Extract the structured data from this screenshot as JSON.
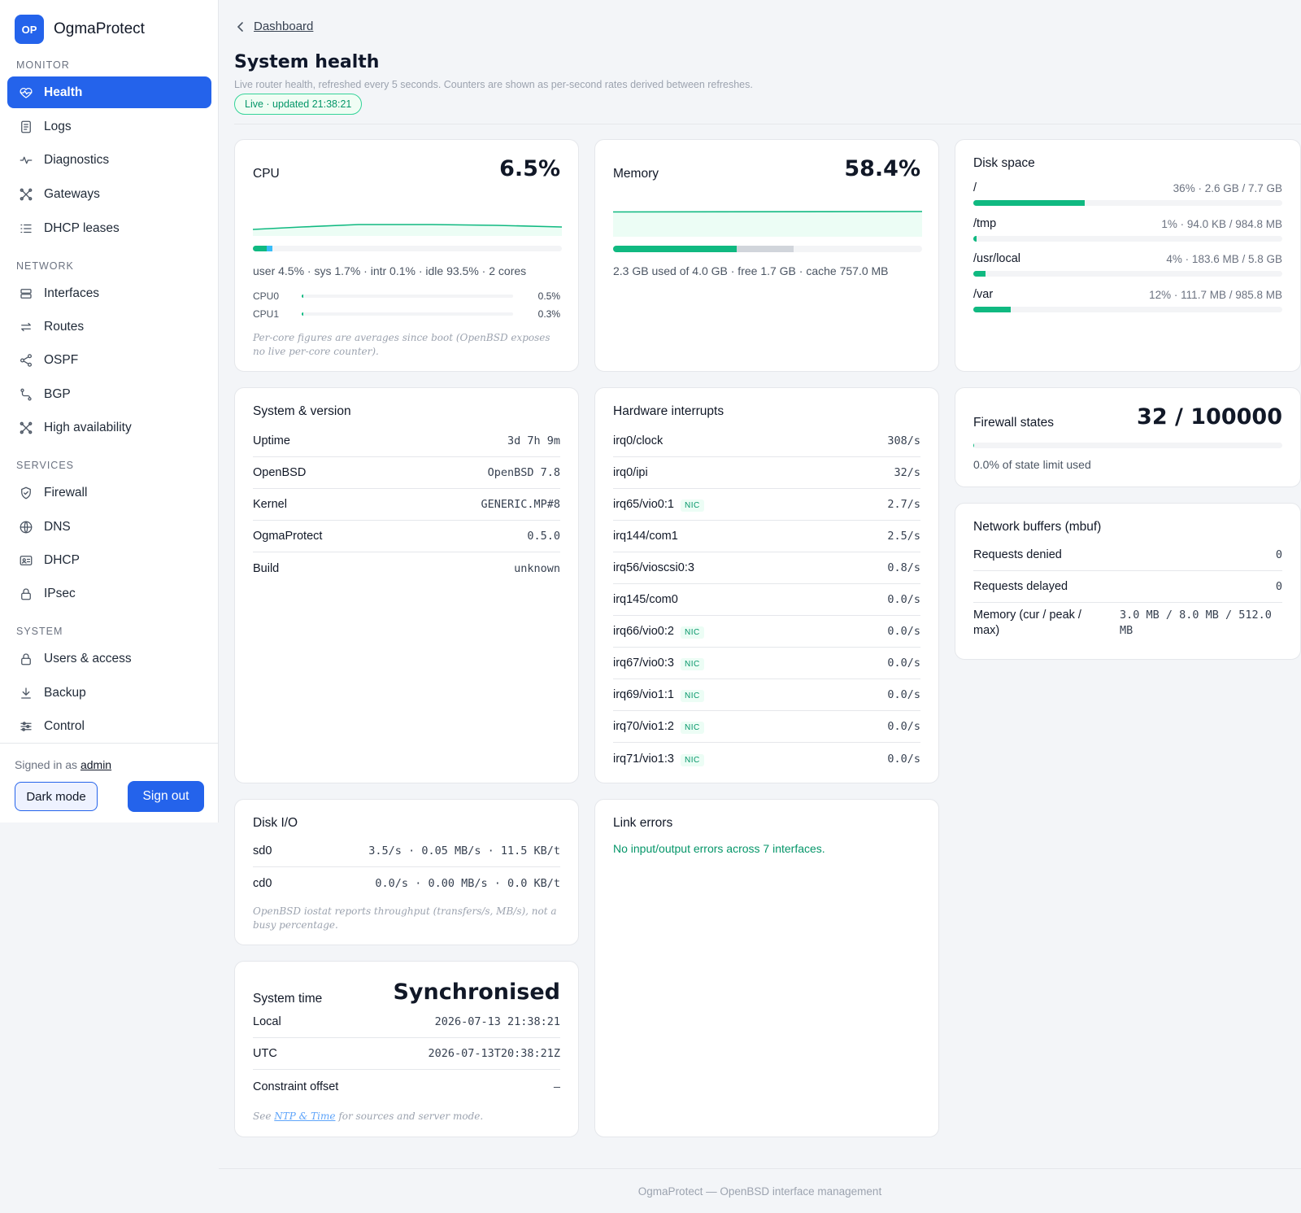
{
  "brand": {
    "logo": "OP",
    "name": "OgmaProtect"
  },
  "sidebar": {
    "sections": [
      "MONITOR",
      "NETWORK",
      "SERVICES",
      "SYSTEM"
    ],
    "items": [
      {
        "label": "Health",
        "icon": "heart-pulse-icon"
      },
      {
        "label": "Logs",
        "icon": "document-icon"
      },
      {
        "label": "Diagnostics",
        "icon": "activity-icon"
      },
      {
        "label": "Gateways",
        "icon": "network-cross-icon"
      },
      {
        "label": "DHCP leases",
        "icon": "list-icon"
      },
      {
        "label": "Interfaces",
        "icon": "server-icon"
      },
      {
        "label": "Routes",
        "icon": "arrows-exchange-icon"
      },
      {
        "label": "OSPF",
        "icon": "share-nodes-icon"
      },
      {
        "label": "BGP",
        "icon": "route-icon"
      },
      {
        "label": "High availability",
        "icon": "network-cross-icon"
      },
      {
        "label": "Firewall",
        "icon": "shield-icon"
      },
      {
        "label": "DNS",
        "icon": "globe-icon"
      },
      {
        "label": "DHCP",
        "icon": "id-card-icon"
      },
      {
        "label": "IPsec",
        "icon": "lock-icon"
      },
      {
        "label": "Users & access",
        "icon": "lock-icon"
      },
      {
        "label": "Backup",
        "icon": "download-icon"
      },
      {
        "label": "Control",
        "icon": "sliders-icon"
      }
    ],
    "signed_in_prefix": "Signed in as",
    "signed_in_user": "admin",
    "dark_mode_label": "Dark mode",
    "sign_out_label": "Sign out"
  },
  "header": {
    "breadcrumb": "Dashboard",
    "title": "System health",
    "subtitle": "Live router health, refreshed every 5 seconds. Counters are shown as per-second rates derived between refreshes.",
    "live_badge": "Live · updated 21:38:21"
  },
  "cpu": {
    "title": "CPU",
    "value": "6.5%",
    "user_pct": 4.5,
    "sys_pct": 1.7,
    "intr_pct": 0.1,
    "stats": "user 4.5% · sys 1.7% · intr 0.1% · idle 93.5% · 2 cores",
    "cores": [
      {
        "name": "CPU0",
        "value": "0.5%",
        "pct": 0.5
      },
      {
        "name": "CPU1",
        "value": "0.3%",
        "pct": 0.3
      }
    ],
    "note": "Per-core figures are averages since boot (OpenBSD exposes no live per-core counter).",
    "colors": {
      "user": "#10b981",
      "sys": "#38bdf8"
    }
  },
  "memory": {
    "title": "Memory",
    "value": "58.4%",
    "used_pct": 58.4,
    "cache_pct": 18.5,
    "stats": "2.3 GB used of 4.0 GB · free 1.7 GB · cache 757.0 MB"
  },
  "disk_space": {
    "title": "Disk space",
    "mounts": [
      {
        "path": "/",
        "value": "36% · 2.6 GB / 7.7 GB",
        "pct": 36
      },
      {
        "path": "/tmp",
        "value": "1% · 94.0 KB / 984.8 MB",
        "pct": 1
      },
      {
        "path": "/usr/local",
        "value": "4% · 183.6 MB / 5.8 GB",
        "pct": 4
      },
      {
        "path": "/var",
        "value": "12% · 111.7 MB / 985.8 MB",
        "pct": 12
      }
    ]
  },
  "system_version": {
    "title": "System & version",
    "rows": [
      {
        "k": "Uptime",
        "v": "3d 7h 9m"
      },
      {
        "k": "OpenBSD",
        "v": "OpenBSD 7.8"
      },
      {
        "k": "Kernel",
        "v": "GENERIC.MP#8"
      },
      {
        "k": "OgmaProtect",
        "v": "0.5.0"
      },
      {
        "k": "Build",
        "v": "unknown"
      }
    ]
  },
  "interrupts": {
    "title": "Hardware interrupts",
    "nic_label": "NIC",
    "rows": [
      {
        "k": "irq0/clock",
        "v": "308/s",
        "nic": false
      },
      {
        "k": "irq0/ipi",
        "v": "32/s",
        "nic": false
      },
      {
        "k": "irq65/vio0:1",
        "v": "2.7/s",
        "nic": true
      },
      {
        "k": "irq144/com1",
        "v": "2.5/s",
        "nic": false
      },
      {
        "k": "irq56/vioscsi0:3",
        "v": "0.8/s",
        "nic": false
      },
      {
        "k": "irq145/com0",
        "v": "0.0/s",
        "nic": false
      },
      {
        "k": "irq66/vio0:2",
        "v": "0.0/s",
        "nic": true
      },
      {
        "k": "irq67/vio0:3",
        "v": "0.0/s",
        "nic": true
      },
      {
        "k": "irq69/vio1:1",
        "v": "0.0/s",
        "nic": true
      },
      {
        "k": "irq70/vio1:2",
        "v": "0.0/s",
        "nic": true
      },
      {
        "k": "irq71/vio1:3",
        "v": "0.0/s",
        "nic": true
      }
    ]
  },
  "firewall": {
    "title": "Firewall states",
    "value": "32 / 100000",
    "used_pct": 0.032,
    "note": "0.0% of state limit used"
  },
  "mbuf": {
    "title": "Network buffers (mbuf)",
    "rows": [
      {
        "k": "Requests denied",
        "v": "0"
      },
      {
        "k": "Requests delayed",
        "v": "0"
      },
      {
        "k": "Memory (cur / peak / max)",
        "v": "3.0 MB / 8.0 MB / 512.0 MB"
      }
    ]
  },
  "disk_io": {
    "title": "Disk I/O",
    "rows": [
      {
        "k": "sd0",
        "v": "3.5/s · 0.05 MB/s · 11.5 KB/t"
      },
      {
        "k": "cd0",
        "v": "0.0/s · 0.00 MB/s · 0.0 KB/t"
      }
    ],
    "note": "OpenBSD iostat reports throughput (transfers/s, MB/s), not a busy percentage."
  },
  "link_errors": {
    "title": "Link errors",
    "message": "No input/output errors across 7 interfaces."
  },
  "system_time": {
    "title": "System time",
    "value": "Synchronised",
    "rows": [
      {
        "k": "Local",
        "v": "2026-07-13 21:38:21"
      },
      {
        "k": "UTC",
        "v": "2026-07-13T20:38:21Z"
      },
      {
        "k": "Constraint offset",
        "v": "–"
      }
    ],
    "note_prefix": "See",
    "note_link": "NTP & Time",
    "note_suffix": "for sources and server mode."
  },
  "footer": "OgmaProtect — OpenBSD interface management"
}
